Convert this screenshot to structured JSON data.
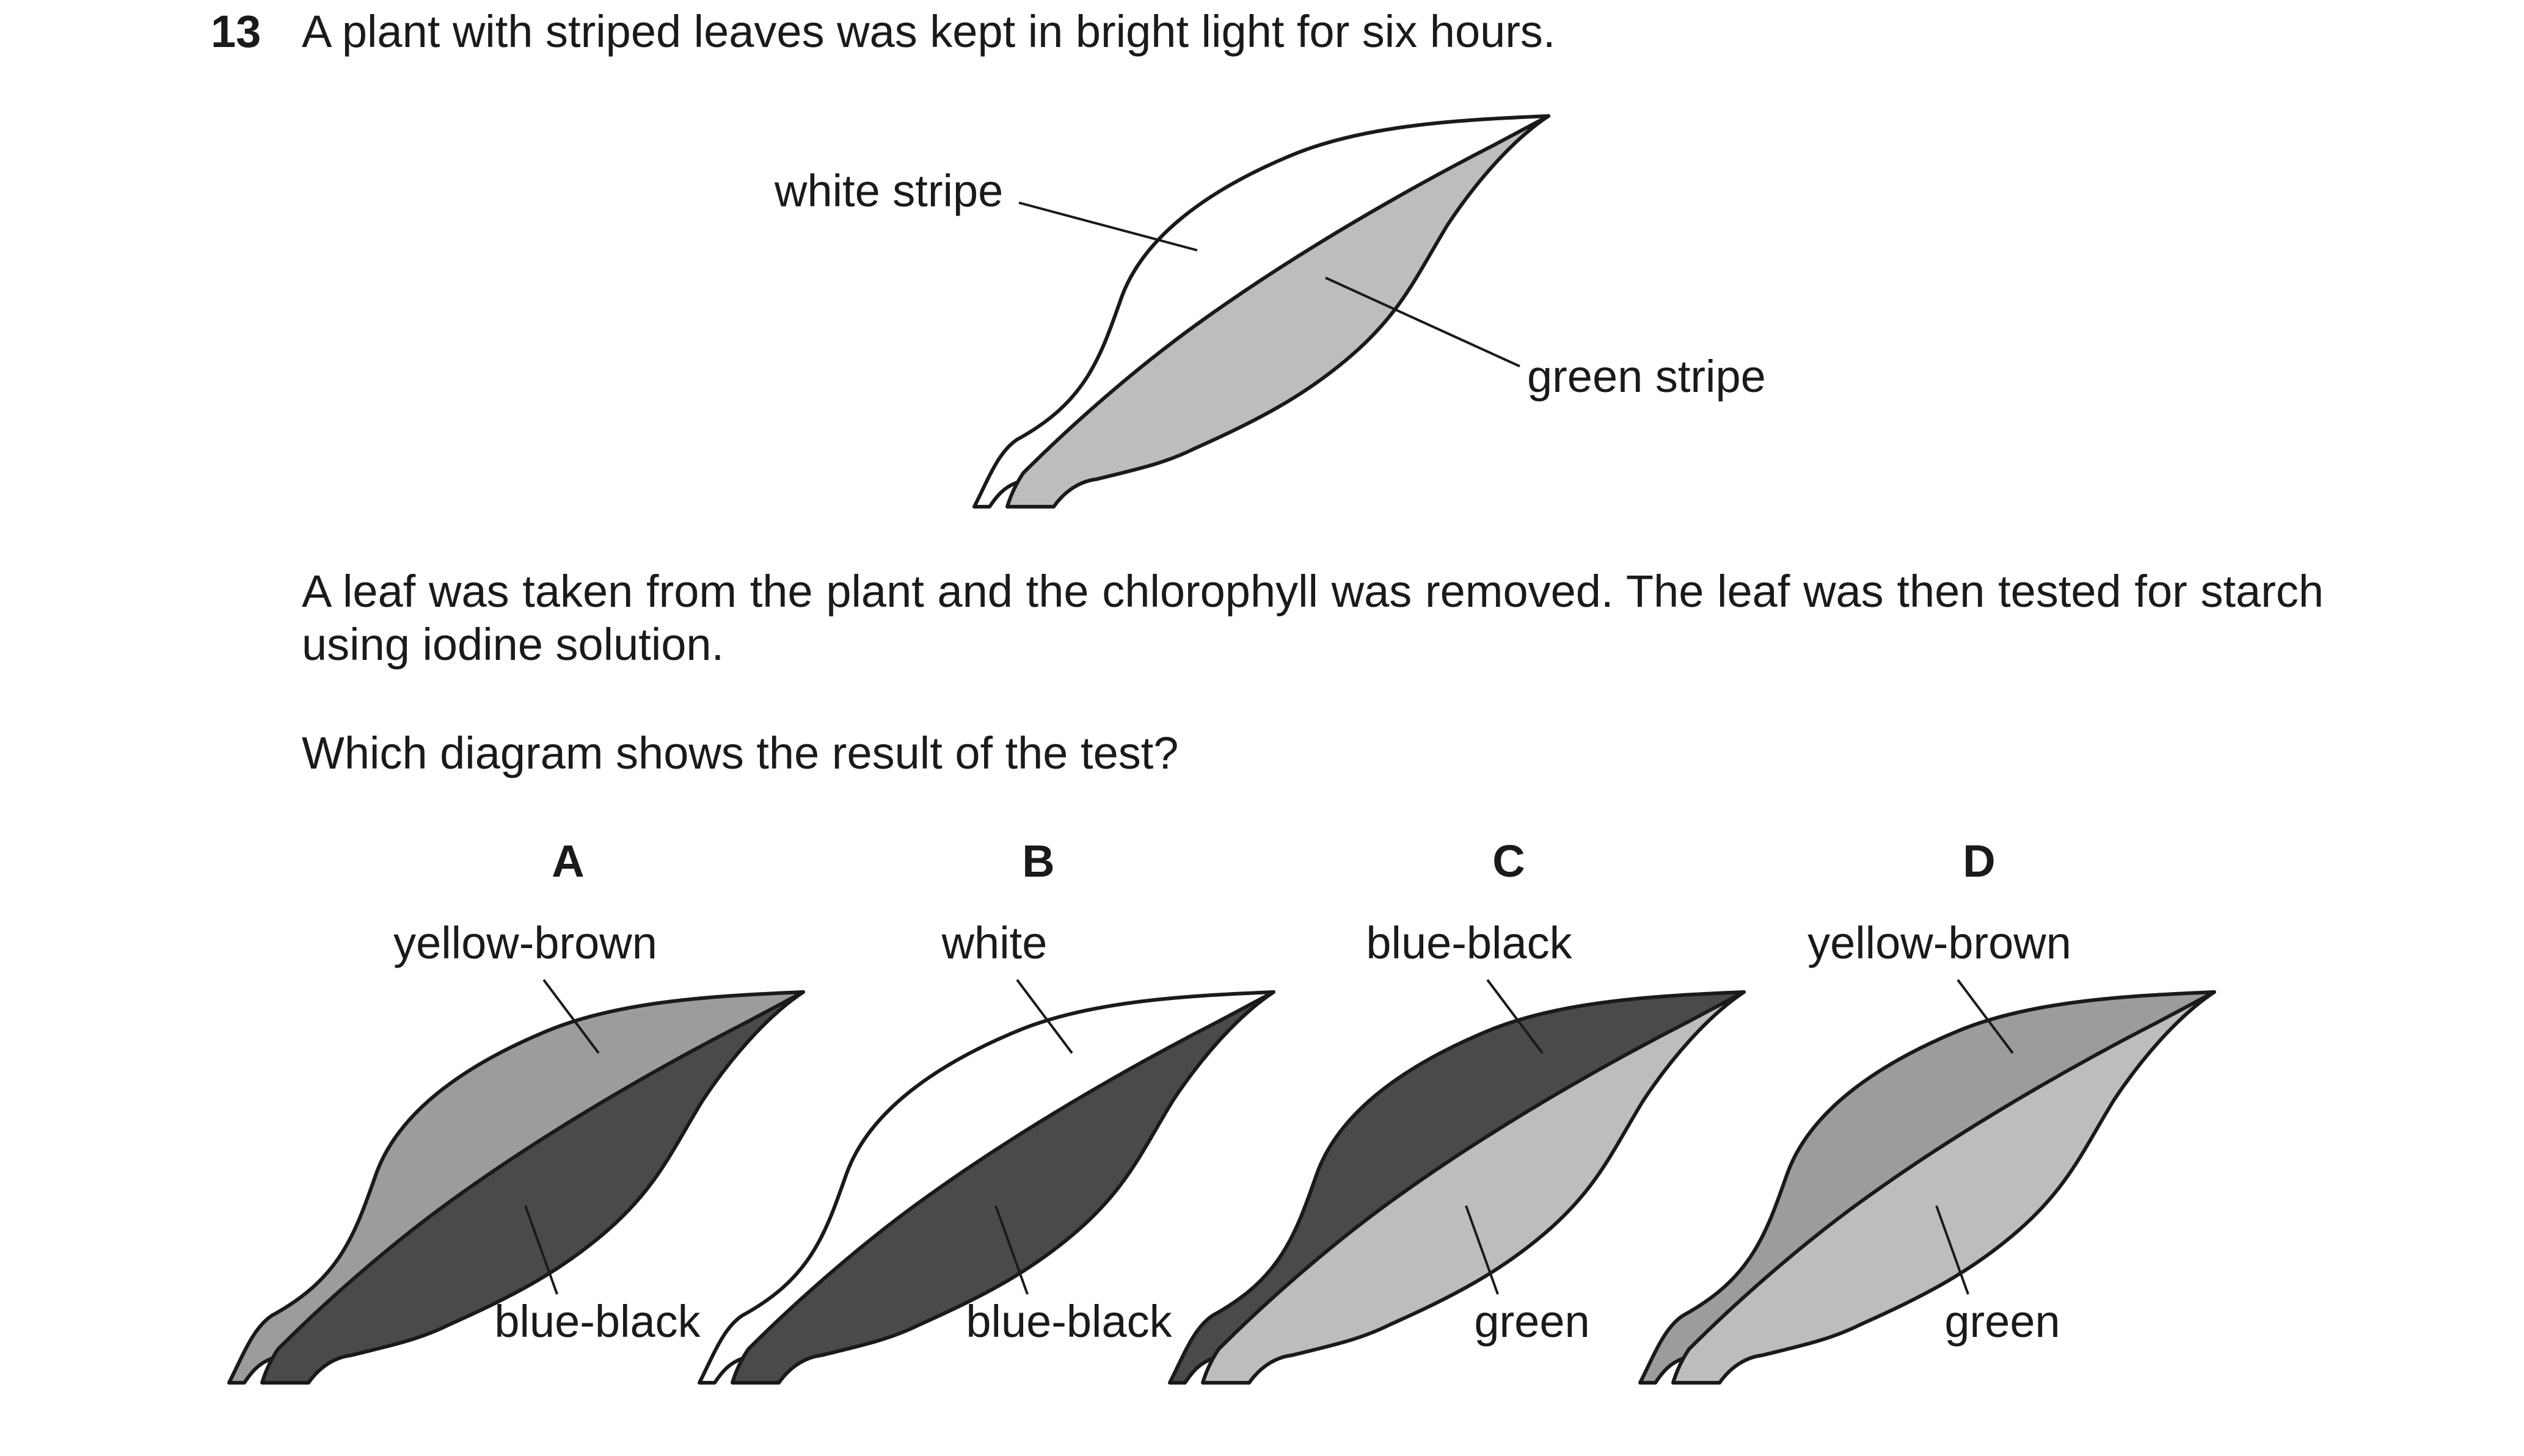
{
  "question": {
    "number": "13",
    "stem": "A plant with striped leaves was kept in bright light for six hours.",
    "paragraph1": "A leaf was taken from the plant and the chlorophyll was removed. The leaf was then tested for starch using iodine solution.",
    "paragraph2": "Which diagram shows the result of the test?"
  },
  "main_figure": {
    "outer_label": "white stripe",
    "inner_label": "green stripe",
    "outer_color": "#ffffff",
    "inner_color": "#bdbdbd"
  },
  "options": [
    {
      "letter": "A",
      "outer_label": "yellow-brown",
      "inner_label": "blue-black",
      "outer_color": "#9c9c9c",
      "inner_color": "#4a4a4a"
    },
    {
      "letter": "B",
      "outer_label": "white",
      "inner_label": "blue-black",
      "outer_color": "#ffffff",
      "inner_color": "#4a4a4a"
    },
    {
      "letter": "C",
      "outer_label": "blue-black",
      "inner_label": "green",
      "outer_color": "#4a4a4a",
      "inner_color": "#bdbdbd"
    },
    {
      "letter": "D",
      "outer_label": "yellow-brown",
      "inner_label": "green",
      "outer_color": "#9c9c9c",
      "inner_color": "#bdbdbd"
    }
  ]
}
